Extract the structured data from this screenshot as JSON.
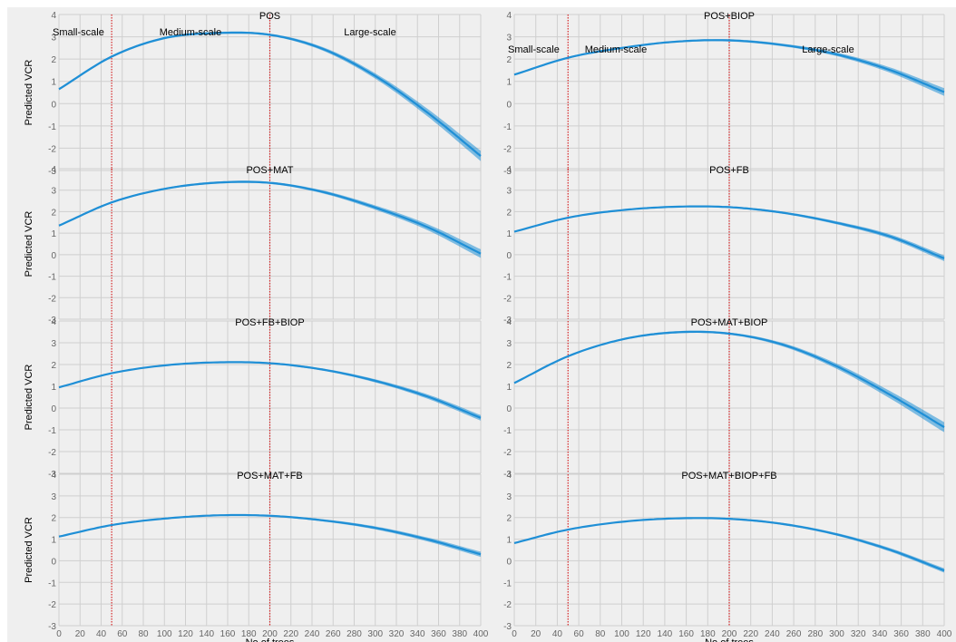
{
  "figure": {
    "title": "",
    "background": "#efefef"
  },
  "style": {
    "line_color": "#1f8fd6",
    "band_color": "#1f8fd6",
    "grid_color": "#cfcfcf",
    "threshold_color": "#d62728",
    "text_color": "#000000",
    "tick_color": "#666666"
  },
  "shared": {
    "xlabel": "No of trees",
    "ylabel": "Predicted VCR",
    "xlim": [
      0,
      400
    ],
    "ylim": [
      -3,
      4
    ],
    "xticks": [
      0,
      20,
      40,
      60,
      80,
      100,
      120,
      140,
      160,
      180,
      200,
      220,
      240,
      260,
      280,
      300,
      320,
      340,
      360,
      380,
      400
    ],
    "yticks": [
      -3,
      -2,
      -1,
      0,
      1,
      2,
      3,
      4
    ],
    "thresholds": [
      50,
      200
    ],
    "grid": true
  },
  "chart_data": [
    {
      "type": "line",
      "title": "POS",
      "xlabel": "",
      "ylabel": "Predicted VCR",
      "x": [
        0,
        50,
        100,
        150,
        200,
        250,
        300,
        350,
        400
      ],
      "values": [
        0.65,
        2.11,
        2.94,
        3.17,
        3.09,
        2.46,
        1.24,
        -0.42,
        -2.35
      ],
      "band": [
        0.05,
        0.05,
        0.05,
        0.05,
        0.05,
        0.08,
        0.12,
        0.17,
        0.23
      ],
      "zone_labels": [
        "Small-scale",
        "Medium-scale",
        "Large-scale"
      ]
    },
    {
      "type": "line",
      "title": "POS+BIOP",
      "xlabel": "",
      "ylabel": "",
      "x": [
        0,
        50,
        100,
        150,
        200,
        250,
        300,
        350,
        400
      ],
      "values": [
        1.3,
        2.06,
        2.5,
        2.78,
        2.84,
        2.63,
        2.21,
        1.5,
        0.52
      ],
      "band": [
        0.04,
        0.04,
        0.04,
        0.04,
        0.05,
        0.06,
        0.08,
        0.12,
        0.17
      ],
      "zone_labels": [
        "Small-scale",
        "Medium-scale",
        "Large-scale"
      ]
    },
    {
      "type": "line",
      "title": "POS+MAT",
      "xlabel": "",
      "ylabel": "Predicted VCR",
      "x": [
        0,
        50,
        100,
        150,
        200,
        250,
        300,
        350,
        400
      ],
      "values": [
        1.35,
        2.43,
        3.06,
        3.35,
        3.34,
        2.92,
        2.19,
        1.27,
        0.05
      ],
      "band": [
        0.04,
        0.04,
        0.04,
        0.05,
        0.05,
        0.07,
        0.1,
        0.14,
        0.2
      ],
      "zone_labels": []
    },
    {
      "type": "line",
      "title": "POS+FB",
      "xlabel": "",
      "ylabel": "",
      "x": [
        0,
        50,
        100,
        150,
        200,
        250,
        300,
        350,
        400
      ],
      "values": [
        1.07,
        1.72,
        2.07,
        2.23,
        2.21,
        1.95,
        1.48,
        0.84,
        -0.17
      ],
      "band": [
        0.03,
        0.03,
        0.03,
        0.03,
        0.04,
        0.05,
        0.07,
        0.1,
        0.13
      ],
      "zone_labels": []
    },
    {
      "type": "line",
      "title": "POS+FB+BIOP",
      "xlabel": "",
      "ylabel": "Predicted VCR",
      "x": [
        0,
        50,
        100,
        150,
        200,
        250,
        300,
        350,
        400
      ],
      "values": [
        0.95,
        1.6,
        1.96,
        2.1,
        2.06,
        1.77,
        1.25,
        0.52,
        -0.45
      ],
      "band": [
        0.03,
        0.03,
        0.03,
        0.03,
        0.04,
        0.05,
        0.07,
        0.1,
        0.13
      ],
      "zone_labels": []
    },
    {
      "type": "line",
      "title": "POS+MAT+BIOP",
      "xlabel": "",
      "ylabel": "",
      "x": [
        0,
        50,
        100,
        150,
        200,
        250,
        300,
        350,
        400
      ],
      "values": [
        1.15,
        2.38,
        3.15,
        3.48,
        3.42,
        2.91,
        1.92,
        0.6,
        -0.88
      ],
      "band": [
        0.04,
        0.04,
        0.04,
        0.05,
        0.05,
        0.08,
        0.12,
        0.17,
        0.23
      ],
      "zone_labels": []
    },
    {
      "type": "line",
      "title": "POS+MAT+FB",
      "xlabel": "No of trees",
      "ylabel": "Predicted VCR",
      "x": [
        0,
        50,
        100,
        150,
        200,
        250,
        300,
        350,
        400
      ],
      "values": [
        1.12,
        1.65,
        1.95,
        2.1,
        2.08,
        1.87,
        1.52,
        0.98,
        0.3
      ],
      "band": [
        0.03,
        0.03,
        0.03,
        0.03,
        0.04,
        0.05,
        0.07,
        0.09,
        0.12
      ],
      "zone_labels": []
    },
    {
      "type": "line",
      "title": "POS+MAT+BIOP+FB",
      "xlabel": "No of trees",
      "ylabel": "",
      "x": [
        0,
        50,
        100,
        150,
        200,
        250,
        300,
        350,
        400
      ],
      "values": [
        0.82,
        1.44,
        1.8,
        1.96,
        1.94,
        1.7,
        1.22,
        0.5,
        -0.45
      ],
      "band": [
        0.03,
        0.03,
        0.03,
        0.03,
        0.04,
        0.05,
        0.06,
        0.08,
        0.1
      ],
      "zone_labels": []
    }
  ]
}
